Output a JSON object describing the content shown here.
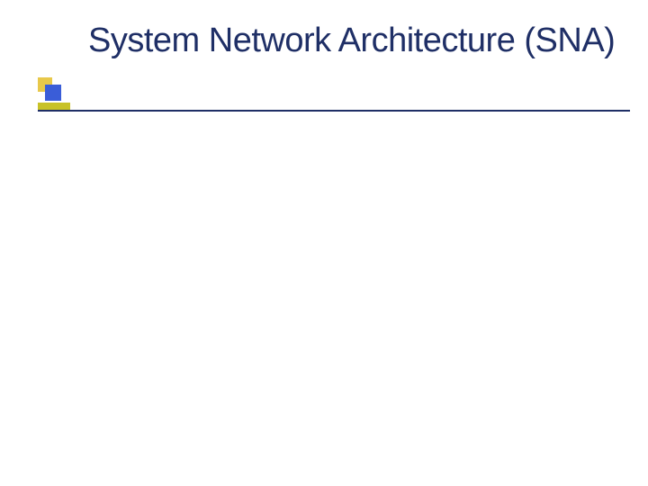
{
  "slide": {
    "title": "System Network Architecture (SNA)",
    "title_color": "#1f2f66",
    "title_fontsize": 38,
    "title_fontfamily": "Verdana, Geneva, sans-serif",
    "background_color": "#ffffff",
    "marker": {
      "back_color": "#e8c84a",
      "front_color": "#3a5dd8"
    },
    "divider": {
      "line_color": "#1f2f66",
      "short_color": "#c8c228"
    }
  }
}
